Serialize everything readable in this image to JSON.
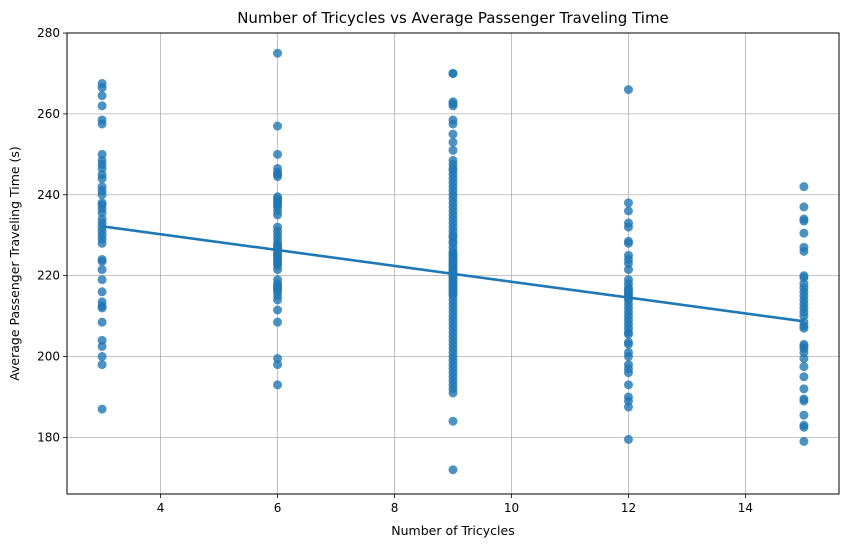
{
  "chart_data": {
    "type": "scatter",
    "title": "Number of Tricycles vs Average Passenger Traveling Time",
    "xlabel": "Number of Tricycles",
    "ylabel": "Average Passenger Traveling Time (s)",
    "xlim": [
      2.4,
      15.6
    ],
    "ylim": [
      166,
      280
    ],
    "xticks": [
      4,
      6,
      8,
      10,
      12,
      14
    ],
    "yticks": [
      180,
      200,
      220,
      240,
      260,
      280
    ],
    "grid": true,
    "point_color": "#1f77b4",
    "line_color": "#1f77b4",
    "regression_line": {
      "x": [
        3,
        15
      ],
      "y": [
        232.2,
        208.7
      ]
    },
    "series": [
      {
        "x": 3,
        "values": [
          267.5,
          266.5,
          264.5,
          262,
          258.5,
          257.5,
          250,
          248.5,
          247.5,
          246.5,
          245,
          244,
          242,
          241,
          240,
          238,
          237.5,
          236.5,
          235.5,
          234,
          233,
          232,
          231,
          230,
          229,
          228,
          224,
          223.5,
          221.5,
          219,
          216,
          213.5,
          212.5,
          212,
          208.5,
          204,
          202.5,
          200,
          198,
          187
        ]
      },
      {
        "x": 6,
        "values": [
          275,
          257,
          250,
          246.5,
          245.5,
          245,
          244.5,
          239.5,
          239,
          238.5,
          238,
          237.5,
          237,
          236,
          235,
          232,
          231,
          230,
          229,
          228,
          227.5,
          227,
          226.5,
          226,
          225.5,
          225,
          224.5,
          224,
          223.5,
          223,
          222.5,
          221.5,
          219,
          218,
          217.5,
          217,
          216.5,
          216,
          215,
          214,
          211.5,
          208.5,
          199.5,
          198,
          193
        ]
      },
      {
        "x": 9,
        "values": [
          270,
          270,
          263,
          262.5,
          262,
          258.5,
          257.5,
          255,
          253,
          251,
          248.5,
          247.5,
          246.5,
          246,
          245,
          244,
          243,
          242,
          241,
          240,
          239,
          238,
          237,
          236,
          235,
          234,
          233,
          232,
          231,
          230,
          229.5,
          228.5,
          228,
          227,
          226,
          225.5,
          225,
          224.5,
          224,
          223.5,
          223,
          222.5,
          222,
          221.5,
          221,
          220.5,
          220,
          219.5,
          219,
          218.5,
          218,
          217.5,
          217,
          216.5,
          216,
          215.5,
          215,
          214,
          213,
          212,
          211,
          210,
          209,
          208,
          207,
          206,
          205,
          204,
          203,
          202,
          201,
          200,
          199,
          198,
          197,
          196,
          195,
          194,
          193,
          192,
          191,
          184,
          172
        ]
      },
      {
        "x": 12,
        "values": [
          266,
          238,
          236,
          233,
          232,
          228.5,
          228,
          225,
          224,
          223,
          221.5,
          219,
          218,
          217,
          216.5,
          216,
          215.5,
          215,
          214.5,
          214,
          213,
          212,
          211,
          210,
          209,
          208,
          207,
          206,
          205.5,
          203.5,
          203,
          201,
          200,
          198,
          197,
          196,
          193,
          190,
          189,
          187.5,
          179.5
        ]
      },
      {
        "x": 15,
        "values": [
          242,
          237,
          234,
          233.5,
          230.5,
          227,
          226,
          220,
          219.5,
          218,
          217,
          216,
          215,
          214,
          213,
          212,
          211,
          210,
          208.5,
          207.5,
          207,
          203,
          202.5,
          202,
          201,
          199.5,
          197.5,
          195,
          192,
          189.5,
          189,
          185.5,
          183,
          182.5,
          179
        ]
      }
    ]
  }
}
